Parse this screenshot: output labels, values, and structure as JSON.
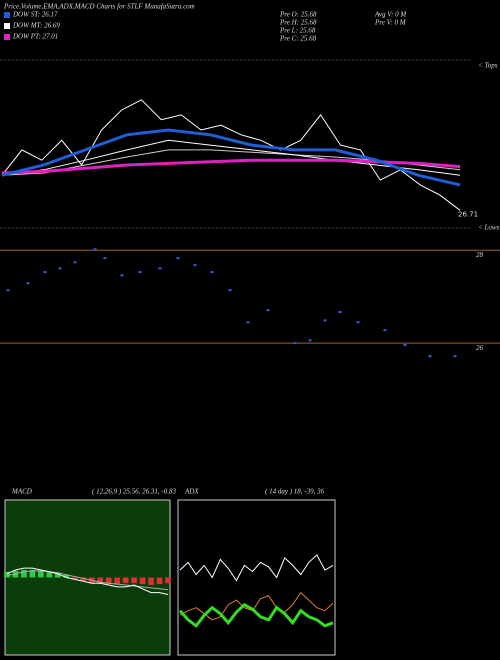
{
  "header": {
    "title": "Price,Volume,EMA,ADX,MACD Charts for STLF MunafaSutra.com",
    "dow": [
      {
        "text": "DOW ST: 26.17",
        "color": "#1f5fd6"
      },
      {
        "text": "DOW MT: 26.69",
        "color": "#ffffff"
      },
      {
        "text": "DOW PT: 27.01",
        "color": "#e020c0"
      }
    ],
    "pre": [
      "Pre  O: 25.68",
      "Pre  H: 25.68",
      "Pre  L: 25.68",
      "Pre  C: 25.68"
    ],
    "volume": [
      "Avg  V: 0  M",
      "Pre  V: 0  M"
    ]
  },
  "chart_data": [
    {
      "type": "line",
      "annotations": [
        "< Tops",
        "< Lows"
      ],
      "ylim": [
        26.4,
        28.6
      ],
      "series": [
        {
          "color": "#ffffff",
          "width": 1,
          "values": [
            27.15,
            27.47,
            27.34,
            27.59,
            27.28,
            27.72,
            27.97,
            28.1,
            27.85,
            27.91,
            27.72,
            27.78,
            27.66,
            27.59,
            27.47,
            27.59,
            27.91,
            27.53,
            27.47,
            27.09,
            27.22,
            27.03,
            26.9,
            26.71
          ]
        },
        {
          "color": "#cccccc",
          "width": 1,
          "values": [
            27.15,
            27.18,
            27.28,
            27.38,
            27.47,
            27.47,
            27.44,
            27.41,
            27.38,
            27.34,
            27.28,
            27.22
          ]
        },
        {
          "color": "#ffffff",
          "width": 1,
          "values": [
            27.15,
            27.22,
            27.34,
            27.47,
            27.59,
            27.53,
            27.47,
            27.41,
            27.34,
            27.28,
            27.22,
            27.15
          ]
        },
        {
          "color": "#e020c0",
          "width": 3,
          "values": [
            27.18,
            27.2,
            27.24,
            27.28,
            27.3,
            27.32,
            27.34,
            27.34,
            27.34,
            27.32,
            27.3,
            27.26
          ]
        },
        {
          "color": "#1f5fd6",
          "width": 3,
          "values": [
            27.15,
            27.28,
            27.47,
            27.66,
            27.72,
            27.66,
            27.53,
            27.47,
            27.47,
            27.34,
            27.15,
            27.03
          ]
        }
      ]
    },
    {
      "type": "scatter",
      "color": "#3a5bd9",
      "xlim": [
        0,
        460
      ],
      "ylim": [
        25.53,
        28.22
      ],
      "yticks": [
        28,
        26
      ],
      "x": [
        8,
        28,
        45,
        60,
        75,
        95,
        105,
        122,
        140,
        160,
        178,
        195,
        212,
        230,
        248,
        268,
        295,
        310,
        325,
        340,
        358,
        385,
        405,
        430,
        455
      ],
      "values": [
        27.14,
        27.29,
        27.53,
        27.61,
        27.74,
        28.02,
        27.83,
        27.46,
        27.53,
        27.61,
        27.83,
        27.68,
        27.53,
        27.14,
        26.45,
        26.71,
        26.0,
        26.06,
        26.49,
        26.67,
        26.45,
        26.28,
        25.96,
        25.72,
        25.72
      ]
    },
    {
      "type": "line",
      "title": "MACD",
      "subtitle": "( 12,26,9 ) 25.56, 26.31, -0.83",
      "ylim": [
        -4,
        4
      ],
      "series": [
        {
          "type": "bar",
          "color": "#2ecc40",
          "negative_color": "#e03030",
          "values": [
            0.3,
            0.35,
            0.4,
            0.4,
            0.35,
            0.3,
            0.25,
            0.15,
            -0.1,
            -0.2,
            -0.3,
            -0.3,
            -0.35,
            -0.35,
            -0.3,
            -0.3,
            -0.35,
            -0.4,
            -0.35,
            -0.3
          ]
        },
        {
          "color": "#aaaaaa",
          "width": 1,
          "values": [
            0.1,
            0.2,
            0.3,
            0.35,
            0.35,
            0.3,
            0.25,
            0.15,
            0.05,
            -0.05,
            -0.15,
            -0.25,
            -0.3,
            -0.35,
            -0.4,
            -0.45,
            -0.5,
            -0.55,
            -0.6,
            -0.65
          ]
        },
        {
          "color": "#ffffff",
          "width": 1,
          "values": [
            0.2,
            0.4,
            0.5,
            0.5,
            0.4,
            0.3,
            0.2,
            0.0,
            -0.1,
            -0.2,
            -0.3,
            -0.3,
            -0.4,
            -0.5,
            -0.5,
            -0.4,
            -0.6,
            -0.8,
            -0.8,
            -0.9
          ]
        }
      ]
    },
    {
      "type": "line",
      "title": "ADX",
      "subtitle": "( 14  day ) 18, -39, 36",
      "ylim": [
        0,
        100
      ],
      "series": [
        {
          "color": "#ffffff",
          "width": 1,
          "values": [
            55,
            60,
            52,
            58,
            50,
            62,
            56,
            48,
            58,
            54,
            60,
            57,
            50,
            63,
            58,
            52,
            60,
            65,
            55,
            58
          ]
        },
        {
          "color": "#e08020",
          "width": 1,
          "values": [
            25,
            28,
            30,
            26,
            22,
            24,
            32,
            35,
            30,
            28,
            36,
            38,
            30,
            27,
            32,
            40,
            35,
            30,
            28,
            33
          ]
        },
        {
          "color": "#33dd22",
          "width": 3,
          "values": [
            28,
            22,
            18,
            25,
            30,
            26,
            20,
            27,
            32,
            29,
            24,
            22,
            30,
            26,
            20,
            28,
            24,
            22,
            18,
            20
          ]
        }
      ]
    }
  ]
}
